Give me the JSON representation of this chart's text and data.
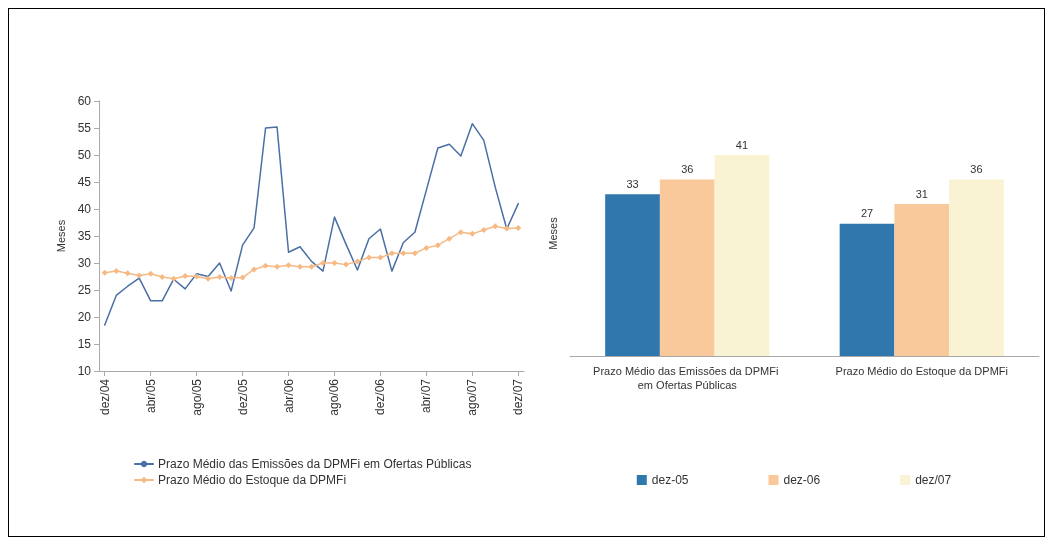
{
  "chart_data": [
    {
      "type": "line",
      "ylabel": "Meses",
      "categories": [
        "dez/04",
        null,
        null,
        null,
        "abr/05",
        null,
        null,
        null,
        "ago/05",
        null,
        null,
        null,
        "dez/05",
        null,
        null,
        null,
        "abr/06",
        null,
        null,
        null,
        "ago/06",
        null,
        null,
        null,
        "dez/06",
        null,
        null,
        null,
        "abr/07",
        null,
        null,
        null,
        "ago/07",
        null,
        null,
        null,
        "dez/07"
      ],
      "series": [
        {
          "name": "Prazo Médio das Emissões da DPMFi em Ofertas Públicas",
          "color": "#4a6fa5",
          "marker": "none",
          "values": [
            18.5,
            24,
            25.7,
            27.2,
            23,
            23,
            27,
            25.2,
            28,
            27.5,
            30,
            24.8,
            33.3,
            36.5,
            55,
            55.2,
            32,
            33,
            30.3,
            28.5,
            38.5,
            33.5,
            28.7,
            34.5,
            36.3,
            28.5,
            33.8,
            35.7,
            43.5,
            51.3,
            52,
            49.8,
            55.8,
            52.7,
            44,
            36.3,
            41
          ]
        },
        {
          "name": "Prazo Médio do Estoque da DPMFi",
          "color": "#f6b983",
          "marker": "diamond",
          "values": [
            28.2,
            28.5,
            28.1,
            27.7,
            28,
            27.4,
            27.1,
            27.6,
            27.5,
            27.1,
            27.4,
            27.2,
            27.3,
            28.8,
            29.5,
            29.3,
            29.6,
            29.3,
            29.3,
            30,
            30,
            29.7,
            30.3,
            31,
            31,
            31.8,
            31.8,
            31.8,
            32.8,
            33.3,
            34.5,
            35.7,
            35.4,
            36.1,
            36.8,
            36.4,
            36.5
          ]
        }
      ],
      "ylim": [
        10,
        60
      ],
      "yticks": [
        10,
        15,
        20,
        25,
        30,
        35,
        40,
        45,
        50,
        55,
        60
      ],
      "grid": false,
      "legend": "bottom"
    },
    {
      "type": "bar",
      "ylabel": "Meses",
      "categories": [
        "Prazo Médio das Emissões da DPMFi em Ofertas Públicas",
        "Prazo Médio do Estoque da DPMFi"
      ],
      "series": [
        {
          "name": "dez-05",
          "color": "#2f77ad",
          "values": [
            33,
            27
          ]
        },
        {
          "name": "dez-06",
          "color": "#f9c89b",
          "values": [
            36,
            31
          ]
        },
        {
          "name": "dez/07",
          "color": "#faf3d3",
          "values": [
            41,
            36
          ]
        }
      ],
      "data_labels": true,
      "tick_labels": "x",
      "grid": false,
      "legend": "bottom"
    }
  ]
}
